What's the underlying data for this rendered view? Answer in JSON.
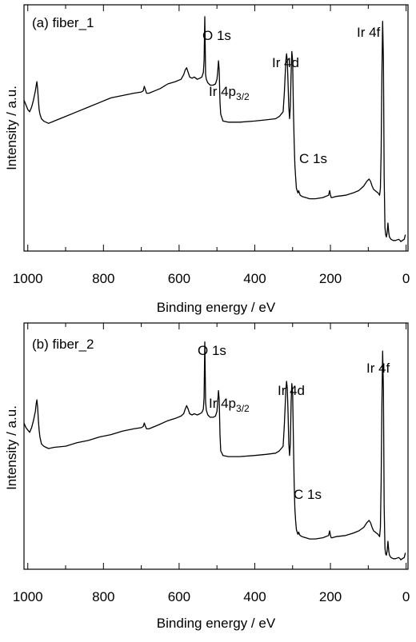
{
  "chart_data": [
    {
      "type": "line",
      "panel_label": "(a) fiber_1",
      "xlabel": "Binding energy / eV",
      "ylabel": "Intensity / a.u.",
      "xlim": [
        1000,
        0
      ],
      "x_reversed": true,
      "ylim": [
        0,
        100
      ],
      "y_ticks_shown": false,
      "x_ticks": [
        1000,
        800,
        600,
        400,
        200,
        0
      ],
      "x_tick_labels": [
        "1000",
        "800",
        "600",
        "400",
        "200",
        "0"
      ],
      "annotations": [
        {
          "text": "O 1s",
          "x": 532
        },
        {
          "text": "Ir 4p",
          "sub": "3/2",
          "x": 495
        },
        {
          "text": "Ir 4d",
          "x": 312
        },
        {
          "text": "C 1s",
          "x": 285
        },
        {
          "text": "Ir 4f",
          "x": 62
        }
      ],
      "series": [
        {
          "x": [
            1010,
            1005,
            1000,
            995,
            990,
            985,
            980,
            978,
            976,
            974,
            972,
            970,
            968,
            964,
            958,
            952,
            945,
            930,
            900,
            870,
            840,
            810,
            780,
            750,
            720,
            700,
            695,
            692,
            690,
            686,
            680,
            665,
            650,
            630,
            610,
            595,
            588,
            584,
            580,
            576,
            572,
            566,
            560,
            552,
            545,
            540,
            536,
            534,
            532,
            530,
            528,
            524,
            518,
            510,
            504,
            500,
            498,
            496,
            494,
            492,
            490,
            484,
            470,
            440,
            400,
            370,
            345,
            335,
            325,
            322,
            318,
            316,
            314,
            312,
            310,
            308,
            306,
            304,
            302,
            300,
            298,
            296,
            294,
            292,
            290,
            288,
            286,
            284,
            282,
            280,
            275,
            265,
            255,
            240,
            220,
            205,
            202,
            200,
            198,
            196,
            185,
            160,
            140,
            125,
            112,
            104,
            98,
            94,
            90,
            86,
            82,
            78,
            74,
            70,
            68,
            66,
            64,
            62,
            60,
            58,
            56,
            54,
            52,
            50,
            48,
            46,
            44,
            40,
            34,
            28,
            20,
            16,
            14,
            10,
            5,
            2
          ],
          "y": [
            63,
            61,
            59,
            58,
            60,
            63,
            67,
            69,
            71,
            68,
            63,
            59,
            57,
            55,
            54,
            53.5,
            53,
            54,
            56,
            58,
            60,
            62,
            64,
            65,
            66,
            66.5,
            67,
            69,
            68,
            66,
            66,
            67,
            68,
            70,
            71,
            72,
            74,
            76,
            77,
            75,
            73,
            72.5,
            73,
            72,
            72.5,
            73,
            75,
            80,
            99,
            74,
            72,
            70.5,
            69.5,
            69.5,
            70,
            72,
            75,
            80,
            76,
            62,
            57,
            54,
            53.5,
            53.5,
            54,
            54.5,
            55,
            56,
            58,
            66,
            80,
            83,
            80,
            70,
            60,
            55,
            60,
            75,
            84,
            80,
            60,
            45,
            35,
            30,
            25,
            24,
            23,
            24,
            23,
            22,
            21.5,
            21,
            20.5,
            20.5,
            21,
            22,
            24,
            22,
            21,
            21,
            21.5,
            22,
            23,
            24,
            26,
            28,
            29,
            28,
            26,
            24.5,
            24,
            23.5,
            23,
            22,
            25,
            40,
            75,
            97,
            80,
            30,
            8,
            5,
            4,
            6,
            10,
            6,
            4,
            3,
            2.5,
            2.5,
            3,
            2.5,
            2,
            2.5,
            3,
            5
          ]
        }
      ]
    },
    {
      "type": "line",
      "panel_label": "(b) fiber_2",
      "xlabel": "Binding energy / eV",
      "ylabel": "Intensity / a.u.",
      "xlim": [
        1000,
        0
      ],
      "x_reversed": true,
      "ylim": [
        0,
        100
      ],
      "y_ticks_shown": false,
      "x_ticks": [
        1000,
        800,
        600,
        400,
        200,
        0
      ],
      "x_tick_labels": [
        "1000",
        "800",
        "600",
        "400",
        "200",
        "0"
      ],
      "annotations": [
        {
          "text": "O 1s",
          "x": 532
        },
        {
          "text": "Ir 4p",
          "sub": "3/2",
          "x": 495
        },
        {
          "text": "Ir 4d",
          "x": 312
        },
        {
          "text": "C 1s",
          "x": 285
        },
        {
          "text": "Ir 4f",
          "x": 62
        }
      ],
      "series": [
        {
          "x": [
            1010,
            1005,
            1000,
            995,
            990,
            985,
            980,
            978,
            976,
            974,
            972,
            970,
            968,
            964,
            958,
            952,
            945,
            930,
            900,
            870,
            840,
            810,
            780,
            750,
            720,
            700,
            695,
            692,
            690,
            686,
            680,
            665,
            650,
            630,
            610,
            595,
            588,
            584,
            580,
            576,
            572,
            566,
            560,
            552,
            545,
            540,
            536,
            534,
            532,
            530,
            528,
            524,
            518,
            510,
            504,
            500,
            498,
            496,
            494,
            492,
            490,
            484,
            470,
            440,
            400,
            370,
            345,
            335,
            325,
            322,
            318,
            316,
            314,
            312,
            310,
            308,
            306,
            304,
            302,
            300,
            298,
            296,
            294,
            292,
            290,
            288,
            286,
            284,
            282,
            280,
            275,
            265,
            255,
            240,
            220,
            205,
            202,
            200,
            198,
            196,
            185,
            160,
            140,
            125,
            112,
            104,
            98,
            94,
            90,
            86,
            82,
            78,
            74,
            70,
            68,
            66,
            64,
            62,
            60,
            58,
            56,
            54,
            52,
            50,
            48,
            46,
            44,
            40,
            34,
            28,
            20,
            16,
            14,
            10,
            5,
            2
          ],
          "y": [
            61,
            59,
            58,
            57,
            59,
            62,
            66,
            69,
            71,
            68,
            62,
            58,
            55,
            52,
            51,
            50.5,
            50,
            50.5,
            51,
            52.5,
            53.5,
            55,
            56,
            57.5,
            58.5,
            59,
            59.5,
            61,
            60,
            58.5,
            58.5,
            59.5,
            60.5,
            62,
            63,
            64,
            65,
            67,
            68.5,
            67,
            65,
            64.5,
            65,
            64.5,
            65,
            65.5,
            67,
            72,
            96,
            70,
            66.5,
            64.5,
            63.5,
            63.5,
            64,
            66,
            70,
            75,
            71,
            56,
            49,
            47,
            46.5,
            46.5,
            47,
            47.5,
            48,
            49,
            51,
            60,
            75,
            79,
            76,
            65,
            52,
            47,
            52,
            70,
            78,
            74,
            55,
            35,
            24,
            19,
            15,
            14,
            13,
            14,
            13,
            12.5,
            12,
            11.5,
            11,
            11,
            11.5,
            12.5,
            14.5,
            12.5,
            11.5,
            11.5,
            12,
            12.5,
            13.5,
            14.5,
            16,
            18,
            19,
            18,
            16,
            14.5,
            14,
            13.5,
            13,
            12,
            16,
            35,
            70,
            92,
            75,
            25,
            7,
            4.5,
            4,
            6,
            10,
            6,
            4,
            3,
            2.5,
            2.5,
            3,
            2.5,
            2,
            2.5,
            3,
            5
          ]
        }
      ]
    }
  ]
}
